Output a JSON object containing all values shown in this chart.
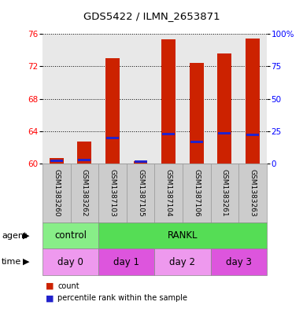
{
  "title": "GDS5422 / ILMN_2653871",
  "samples": [
    "GSM1383260",
    "GSM1383262",
    "GSM1387103",
    "GSM1387105",
    "GSM1387104",
    "GSM1387106",
    "GSM1383261",
    "GSM1383263"
  ],
  "counts": [
    60.7,
    62.7,
    73.0,
    60.3,
    75.3,
    72.4,
    73.6,
    75.4
  ],
  "percentiles": [
    2.5,
    3.0,
    20.0,
    1.5,
    23.0,
    17.0,
    23.5,
    22.5
  ],
  "ymin": 60,
  "ymax": 76,
  "yticks_left": [
    60,
    64,
    68,
    72,
    76
  ],
  "yticks_right": [
    0,
    25,
    50,
    75,
    100
  ],
  "bar_color": "#cc2200",
  "percentile_color": "#2222cc",
  "plot_bg": "#e8e8e8",
  "agent_labels": [
    {
      "text": "control",
      "start": 0,
      "end": 2,
      "color": "#88ee88"
    },
    {
      "text": "RANKL",
      "start": 2,
      "end": 8,
      "color": "#55dd55"
    }
  ],
  "time_labels": [
    {
      "text": "day 0",
      "start": 0,
      "end": 2,
      "color": "#ee99ee"
    },
    {
      "text": "day 1",
      "start": 2,
      "end": 4,
      "color": "#dd55dd"
    },
    {
      "text": "day 2",
      "start": 4,
      "end": 6,
      "color": "#ee99ee"
    },
    {
      "text": "day 3",
      "start": 6,
      "end": 8,
      "color": "#dd55dd"
    }
  ],
  "legend_count_color": "#cc2200",
  "legend_percentile_color": "#2222cc",
  "bar_width": 0.5,
  "sample_box_color": "#cccccc",
  "sample_box_edge": "#999999"
}
